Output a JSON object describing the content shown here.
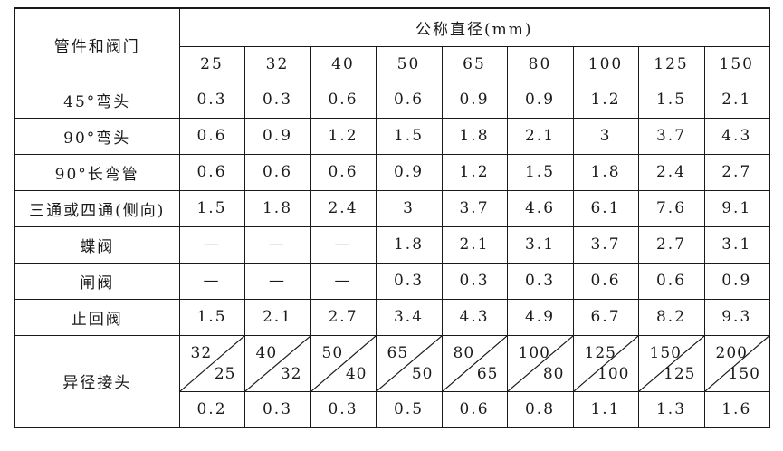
{
  "table": {
    "row_header_label": "管件和阀门",
    "column_group_label": "公称直径(mm)",
    "diameters": [
      "25",
      "32",
      "40",
      "50",
      "65",
      "80",
      "100",
      "125",
      "150"
    ],
    "rows": [
      {
        "name": "45°弯头",
        "values": [
          "0.3",
          "0.3",
          "0.6",
          "0.6",
          "0.9",
          "0.9",
          "1.2",
          "1.5",
          "2.1"
        ]
      },
      {
        "name": "90°弯头",
        "values": [
          "0.6",
          "0.9",
          "1.2",
          "1.5",
          "1.8",
          "2.1",
          "3",
          "3.7",
          "4.3"
        ]
      },
      {
        "name": "90°长弯管",
        "values": [
          "0.6",
          "0.6",
          "0.6",
          "0.9",
          "1.2",
          "1.5",
          "1.8",
          "2.4",
          "2.7"
        ]
      },
      {
        "name": "三通或四通(侧向)",
        "values": [
          "1.5",
          "1.8",
          "2.4",
          "3",
          "3.7",
          "4.6",
          "6.1",
          "7.6",
          "9.1"
        ]
      },
      {
        "name": "蝶阀",
        "values": [
          "—",
          "—",
          "—",
          "1.8",
          "2.1",
          "3.1",
          "3.7",
          "2.7",
          "3.1"
        ]
      },
      {
        "name": "闸阀",
        "values": [
          "—",
          "—",
          "—",
          "0.3",
          "0.3",
          "0.3",
          "0.6",
          "0.6",
          "0.9"
        ]
      },
      {
        "name": "止回阀",
        "values": [
          "1.5",
          "2.1",
          "2.7",
          "3.4",
          "4.3",
          "4.9",
          "6.7",
          "8.2",
          "9.3"
        ]
      }
    ],
    "reducer": {
      "name": "异径接头",
      "pairs": [
        {
          "large": "32",
          "small": "25"
        },
        {
          "large": "40",
          "small": "32"
        },
        {
          "large": "50",
          "small": "40"
        },
        {
          "large": "65",
          "small": "50"
        },
        {
          "large": "80",
          "small": "65"
        },
        {
          "large": "100",
          "small": "80"
        },
        {
          "large": "125",
          "small": "100"
        },
        {
          "large": "150",
          "small": "125"
        },
        {
          "large": "200",
          "small": "150"
        }
      ],
      "values": [
        "0.2",
        "0.3",
        "0.3",
        "0.5",
        "0.6",
        "0.8",
        "1.1",
        "1.3",
        "1.6"
      ]
    }
  }
}
